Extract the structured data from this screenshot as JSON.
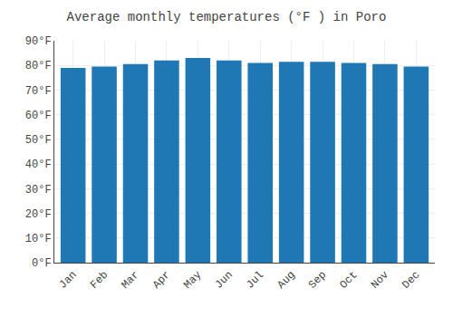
{
  "chart_data": {
    "type": "bar",
    "title": "Average monthly temperatures (°F ) in Poro",
    "categories": [
      "Jan",
      "Feb",
      "Mar",
      "Apr",
      "May",
      "Jun",
      "Jul",
      "Aug",
      "Sep",
      "Oct",
      "Nov",
      "Dec"
    ],
    "values": [
      79,
      79.5,
      80.5,
      82,
      83,
      82,
      81,
      81.5,
      81.5,
      81,
      80.5,
      79.5
    ],
    "ylim": [
      0,
      90
    ],
    "yticks": [
      {
        "value": 0,
        "label": "0°F"
      },
      {
        "value": 10,
        "label": "10°F"
      },
      {
        "value": 20,
        "label": "20°F"
      },
      {
        "value": 30,
        "label": "30°F"
      },
      {
        "value": 40,
        "label": "40°F"
      },
      {
        "value": 50,
        "label": "50°F"
      },
      {
        "value": 60,
        "label": "60°F"
      },
      {
        "value": 70,
        "label": "70°F"
      },
      {
        "value": 80,
        "label": "80°F"
      },
      {
        "value": 90,
        "label": "90°F"
      }
    ],
    "grid": true
  }
}
